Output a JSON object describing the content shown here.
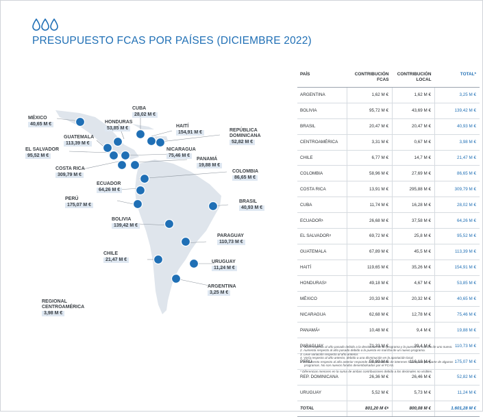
{
  "title": "PRESUPUESTO FCAS POR PAÍSES (DICIEMBRE 2022)",
  "colors": {
    "accent": "#1f6fb5",
    "map_land": "#dfe5ec",
    "map_marker": "#1f6fb5",
    "value_bg": "#dfe8f2"
  },
  "map_labels": {
    "mexico": {
      "name": "MÉXICO",
      "value": "40,65 M €"
    },
    "cuba": {
      "name": "CUBA",
      "value": "28,02 M €"
    },
    "honduras": {
      "name": "HONDURAS",
      "value": "53,85 M €"
    },
    "haiti": {
      "name": "HAITÍ",
      "value": "154,91 M €"
    },
    "rep_dominicana": {
      "name1": "REPÚBLICA",
      "name2": "DOMINICANA",
      "value": "52,82 M €"
    },
    "guatemala": {
      "name": "GUATEMALA",
      "value": "113,39 M €"
    },
    "el_salvador": {
      "name": "EL SALVADOR",
      "value": "95,52 M €"
    },
    "nicaragua": {
      "name": "NICARAGUA",
      "value": "75,46 M €"
    },
    "panama": {
      "name": "PANAMÁ",
      "value": "19,88 M €"
    },
    "costa_rica": {
      "name": "COSTA RICA",
      "value": "309,79 M €"
    },
    "colombia": {
      "name": "COLOMBIA",
      "value": "86,65 M €"
    },
    "ecuador": {
      "name": "ECUADOR",
      "value": "64,26 M €"
    },
    "brasil": {
      "name": "BRASIL",
      "value": "40,93 M €"
    },
    "peru": {
      "name": "PERÚ",
      "value": "175,07 M €"
    },
    "bolivia": {
      "name": "BOLIVIA",
      "value": "139,42 M €"
    },
    "paraguay": {
      "name": "PARAGUAY",
      "value": "110,73 M €"
    },
    "chile": {
      "name": "CHILE",
      "value": "21,47 M €"
    },
    "uruguay": {
      "name": "URUGUAY",
      "value": "11,24 M €"
    },
    "argentina": {
      "name": "ARGENTINA",
      "value": "3,25 M €"
    },
    "regional": {
      "name1": "REGIONAL",
      "name2": "CENTROAMÉRICA",
      "value": "3,98 M €"
    }
  },
  "table": {
    "headers": {
      "pais": "PAÍS",
      "fcas_1": "CONTRIBUCIÓN",
      "fcas_2": "FCAS",
      "local_1": "CONTRIBUCIÓN",
      "local_2": "LOCAL",
      "total": "TOTAL*"
    },
    "rows": [
      {
        "pais": "ARGENTINA",
        "sup": "",
        "fcas": "1,62 M €",
        "local": "1,62 M €",
        "total": "3,25 M €"
      },
      {
        "pais": "BOLIVIA",
        "sup": "",
        "fcas": "95,72 M €",
        "local": "43,69 M €",
        "total": "139,42 M €"
      },
      {
        "pais": "BRASIL",
        "sup": "",
        "fcas": "20,47 M €",
        "local": "20,47 M €",
        "total": "40,93 M €"
      },
      {
        "pais": "CENTROAMÉRICA",
        "sup": "",
        "fcas": "3,31 M €",
        "local": "0,67 M €",
        "total": "3,98 M €"
      },
      {
        "pais": "CHILE",
        "sup": "",
        "fcas": "6,77 M €",
        "local": "14,7 M €",
        "total": "21,47 M €"
      },
      {
        "pais": "COLOMBIA",
        "sup": "",
        "fcas": "58,96 M €",
        "local": "27,69 M €",
        "total": "86,65 M €"
      },
      {
        "pais": "COSTA RICA",
        "sup": "",
        "fcas": "13,91 M €",
        "local": "295,88 M €",
        "total": "309,79 M €"
      },
      {
        "pais": "CUBA",
        "sup": "",
        "fcas": "11,74 M €",
        "local": "16,28 M €",
        "total": "28,02 M €"
      },
      {
        "pais": "ECUADOR",
        "sup": "1",
        "fcas": "26,68 M €",
        "local": "37,58 M €",
        "total": "64,26 M €"
      },
      {
        "pais": "EL SALVADOR",
        "sup": "2",
        "fcas": "69,72 M €",
        "local": "25,8 M €",
        "total": "95,52 M €"
      },
      {
        "pais": "GUATEMALA",
        "sup": "",
        "fcas": "67,89 M €",
        "local": "45,5 M €",
        "total": "113,39 M €"
      },
      {
        "pais": "HAITÍ",
        "sup": "",
        "fcas": "119,65 M €",
        "local": "35,26 M €",
        "total": "154,91 M €"
      },
      {
        "pais": "HONDURAS",
        "sup": "3",
        "fcas": "49,18 M €",
        "local": "4,67 M €",
        "total": "53,85 M €"
      },
      {
        "pais": "MÉXICO",
        "sup": "",
        "fcas": "20,33 M €",
        "local": "20,32 M €",
        "total": "40,65 M €"
      },
      {
        "pais": "NICARAGUA",
        "sup": "",
        "fcas": "62,68 M €",
        "local": "12,78 M €",
        "total": "75,46 M €"
      },
      {
        "pais": "PANAMÁ",
        "sup": "4",
        "fcas": "10,48 M €",
        "local": "9,4 M €",
        "total": "19,88 M €"
      },
      {
        "pais": "PARAGUAY",
        "sup": "",
        "fcas": "71,33 M €",
        "local": "39,4 M €",
        "total": "110,73 M €"
      },
      {
        "pais": "PERÚ",
        "sup": "",
        "fcas": "58,89 M €",
        "local": "116,18 M €",
        "total": "175,07 M €"
      },
      {
        "pais": "REP. DOMINICANA",
        "sup": "",
        "fcas": "26,36 M €",
        "local": "26,46 M €",
        "total": "52,82 M €"
      },
      {
        "pais": "URUGUAY",
        "sup": "",
        "fcas": "5,52 M €",
        "local": "5,73 M €",
        "total": "11,24 M €"
      }
    ],
    "total": {
      "label": "TOTAL",
      "fcas": "801,20 M €",
      "fcas_sup": "5",
      "local": "800,08 M €",
      "total": "1.601,28 M €"
    }
  },
  "notes": [
    "1.  Varía respecto al año pasado debido a la devolución de un programa y la puesta en marcha de uno nuevo.",
    "2.  Aumenta respecto al año pasado debido a la puesta en marcha de un nuevo programa.",
    "3.  Leve variación respecto al año anterior.",
    "4.  Varía respecto al año anterior, debido a una disminución en la aportación local.",
    "5.  El aumento respecto al año anterior responde a la devolución de intereses financieros por parte de algunos programas. No son nuevos fondos desembolsados por el FCAS."
  ],
  "note_star": "*   Diferencias menores en la suma de ambas contribuciones debido a los decimales no visibles."
}
